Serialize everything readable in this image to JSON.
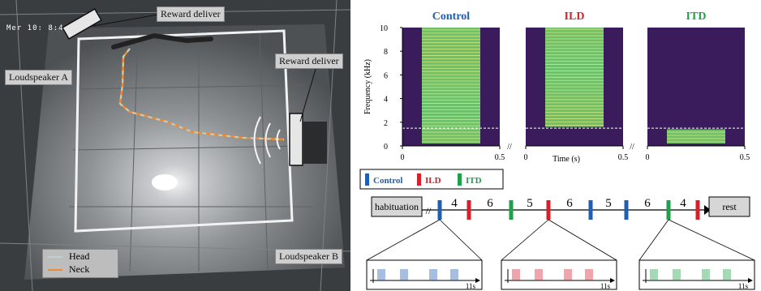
{
  "photo": {
    "timestamp": "Mer 10: 8:4",
    "labels": {
      "reward_top": "Reward deliver",
      "reward_right": "Reward deliver",
      "loudspeaker_a": "Loudspeaker A",
      "loudspeaker_b": "Loudspeaker B"
    },
    "legend": [
      {
        "name": "Head",
        "color": "#b8d3cf"
      },
      {
        "name": "Neck",
        "color": "#ef8a2e"
      }
    ]
  },
  "spectrogram": {
    "panels": [
      {
        "title": "Control",
        "color": "#1f5fb3"
      },
      {
        "title": "ILD",
        "color": "#d6202a"
      },
      {
        "title": "ITD",
        "color": "#1ea14a"
      }
    ],
    "ylabel": "Frequency (kHz)",
    "yticks": [
      "0",
      "2",
      "4",
      "6",
      "8",
      "10"
    ],
    "xticks": [
      "0",
      "0.5"
    ],
    "xlabel": "Time (s)",
    "colors": {
      "background": "#3a1b5c",
      "band": "#6fc06b",
      "line": "#d2e57a"
    }
  },
  "chart_data": {
    "type": "heatmap",
    "ylabel": "Frequency (kHz)",
    "xlabel": "Time (s)",
    "ylim": [
      0,
      10
    ],
    "xlim": [
      0,
      0.5
    ],
    "panels": [
      {
        "name": "Control",
        "tone_start_s": 0.1,
        "tone_end_s": 0.4,
        "freq_low_khz": 0.2,
        "freq_high_khz": 10
      },
      {
        "name": "ILD",
        "tone_start_s": 0.1,
        "tone_end_s": 0.4,
        "freq_low_khz": 1.6,
        "freq_high_khz": 10
      },
      {
        "name": "ITD",
        "tone_start_s": 0.1,
        "tone_end_s": 0.4,
        "freq_low_khz": 0.2,
        "freq_high_khz": 1.4
      }
    ],
    "reference_line_khz": 1.5
  },
  "protocol": {
    "legend": [
      {
        "name": "Control",
        "color": "#1f5fb3"
      },
      {
        "name": "ILD",
        "color": "#d6202a"
      },
      {
        "name": "ITD",
        "color": "#1ea14a"
      }
    ],
    "habituation": "habituation",
    "rest": "rest",
    "sequence": [
      {
        "type": "stim",
        "kind": "Control"
      },
      {
        "type": "gap",
        "label": "4"
      },
      {
        "type": "stim",
        "kind": "ILD"
      },
      {
        "type": "gap",
        "label": "6"
      },
      {
        "type": "stim",
        "kind": "ITD"
      },
      {
        "type": "gap",
        "label": "5"
      },
      {
        "type": "stim",
        "kind": "ILD"
      },
      {
        "type": "gap",
        "label": "6"
      },
      {
        "type": "stim",
        "kind": "Control"
      },
      {
        "type": "gap",
        "label": "5"
      },
      {
        "type": "stim",
        "kind": "Control"
      },
      {
        "type": "gap",
        "label": "6"
      },
      {
        "type": "stim",
        "kind": "ITD"
      },
      {
        "type": "gap",
        "label": "4"
      },
      {
        "type": "stim",
        "kind": "ILD"
      }
    ],
    "zoom_time_label": "11s"
  }
}
